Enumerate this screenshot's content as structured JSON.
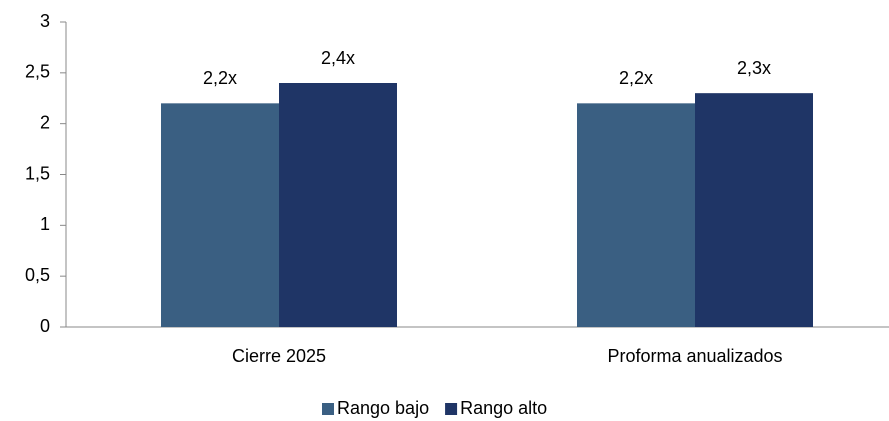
{
  "chart_data": {
    "type": "bar",
    "categories": [
      "Cierre 2025",
      "Proforma anualizados"
    ],
    "series": [
      {
        "name": "Rango bajo",
        "color": "#3a5f82",
        "values": [
          2.2,
          2.2
        ],
        "value_labels": [
          "2,2x",
          "2,2x"
        ]
      },
      {
        "name": "Rango alto",
        "color": "#1f3566",
        "values": [
          2.4,
          2.3
        ],
        "value_labels": [
          "2,4x",
          "2,3x"
        ]
      }
    ],
    "ylim": [
      0,
      3
    ],
    "yticks": [
      0,
      {
        "value": 0.5,
        "label": "0,5"
      },
      1,
      {
        "value": 1.5,
        "label": "1,5"
      },
      2,
      {
        "value": 2.5,
        "label": "2,5"
      },
      3
    ],
    "grid": false,
    "legend": "bottom"
  }
}
